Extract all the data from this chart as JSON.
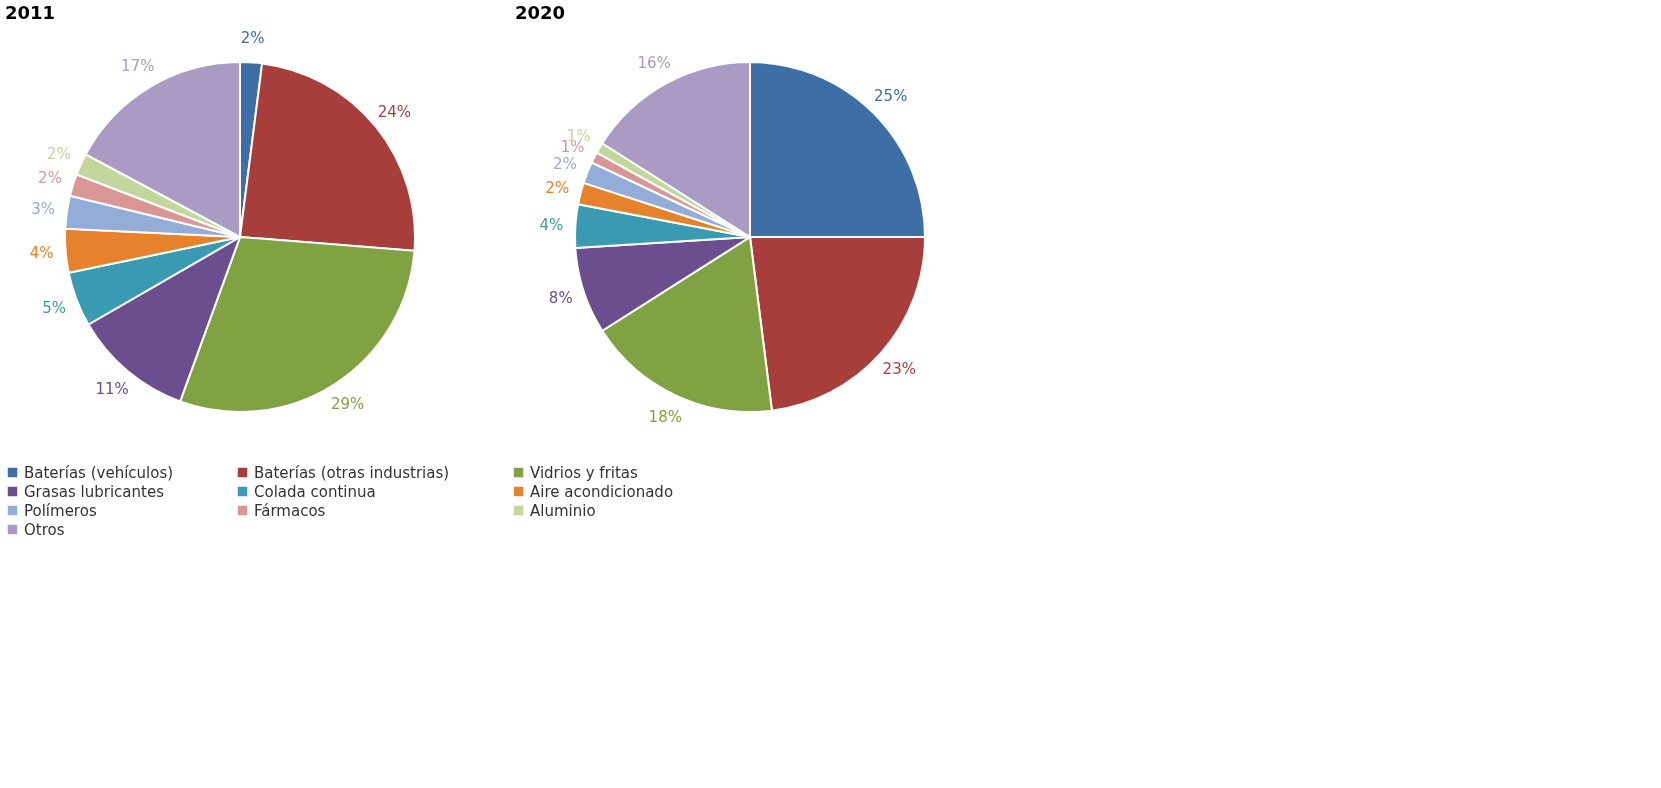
{
  "chart_data": [
    {
      "type": "pie",
      "title": "2011",
      "categories": [
        "Baterías (vehículos)",
        "Baterías (otras industrias)",
        "Vidrios y fritas",
        "Grasas lubricantes",
        "Colada continua",
        "Aire acondicionado",
        "Polímeros",
        "Fármacos",
        "Aluminio",
        "Otros"
      ],
      "values": [
        2,
        24,
        29,
        11,
        5,
        4,
        3,
        2,
        2,
        17
      ],
      "value_labels": [
        "2%",
        "24%",
        "29%",
        "11%",
        "5%",
        "4%",
        "3%",
        "2%",
        "2%",
        "17%"
      ],
      "colors": [
        "#3e6ea6",
        "#a83e3c",
        "#80a243",
        "#6a4e8e",
        "#3a9ab2",
        "#e5822b",
        "#94acd8",
        "#d99694",
        "#c3d69b",
        "#a99bc4"
      ],
      "legend": "bottom"
    },
    {
      "type": "pie",
      "title": "2020",
      "categories": [
        null,
        null,
        null,
        null,
        null,
        null,
        null,
        null,
        null,
        null
      ],
      "values": [
        25,
        23,
        18,
        8,
        4,
        2,
        2,
        1,
        1,
        16
      ],
      "value_labels": [
        "25%",
        "23%",
        "18%",
        "8%",
        "4%",
        "2%",
        "2%",
        "1%",
        "1%",
        "16%"
      ],
      "colors": [
        "#3e6ea6",
        "#a83e3c",
        "#80a243",
        "#6a4e8e",
        "#3a9ab2",
        "#e5822b",
        "#94acd8",
        "#d99694",
        "#c3d69b",
        "#a99bc4"
      ],
      "legend": false
    }
  ]
}
